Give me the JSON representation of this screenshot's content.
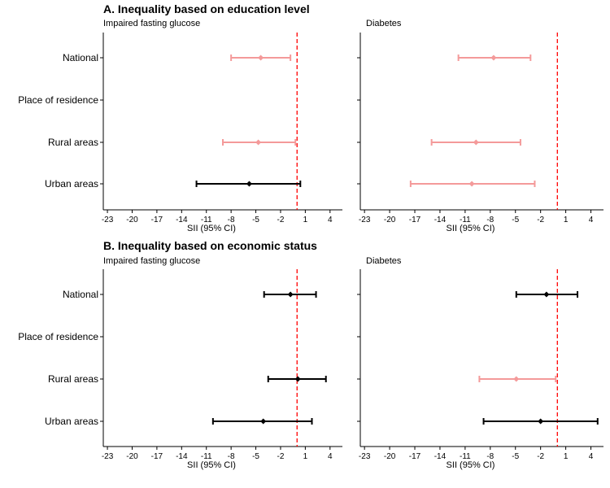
{
  "colors": {
    "significant": "#000000",
    "nonsignificant": "#f49a9a",
    "reference_line": "#ff0000",
    "axis": "#000000"
  },
  "chart_data": [
    {
      "section": "A. Inequality based on education level",
      "panels": [
        {
          "type": "forest",
          "title": "Impaired fasting glucose",
          "xlabel": "SII (95% CI)",
          "xlim": [
            -23.5,
            5.5
          ],
          "xticks": [
            -23,
            -20,
            -17,
            -14,
            -11,
            -8,
            -5,
            -2,
            1,
            4
          ],
          "ref_x": 0,
          "categories": [
            "National",
            "Place of residence",
            "Rural areas",
            "Urban areas"
          ],
          "points": [
            {
              "category": "National",
              "est": -4.4,
              "low": -8.0,
              "high": -0.8,
              "significant": false
            },
            {
              "category": "Rural areas",
              "est": -4.7,
              "low": -9.0,
              "high": -0.2,
              "significant": false
            },
            {
              "category": "Urban areas",
              "est": -5.8,
              "low": -12.2,
              "high": 0.4,
              "significant": true
            }
          ]
        },
        {
          "type": "forest",
          "title": "Diabetes",
          "xlabel": "SII (95% CI)",
          "xlim": [
            -23.5,
            5.5
          ],
          "xticks": [
            -23,
            -20,
            -17,
            -14,
            -11,
            -8,
            -5,
            -2,
            1,
            4
          ],
          "ref_x": 0,
          "categories": [
            "National",
            "Place of residence",
            "Rural areas",
            "Urban areas"
          ],
          "points": [
            {
              "category": "National",
              "est": -7.6,
              "low": -11.8,
              "high": -3.2,
              "significant": false
            },
            {
              "category": "Rural areas",
              "est": -9.7,
              "low": -15.0,
              "high": -4.4,
              "significant": false
            },
            {
              "category": "Urban areas",
              "est": -10.2,
              "low": -17.5,
              "high": -2.7,
              "significant": false
            }
          ]
        }
      ]
    },
    {
      "section": "B. Inequality based on economic status",
      "panels": [
        {
          "type": "forest",
          "title": "Impaired fasting glucose",
          "xlabel": "SII (95% CI)",
          "xlim": [
            -23.5,
            5.5
          ],
          "xticks": [
            -23,
            -20,
            -17,
            -14,
            -11,
            -8,
            -5,
            -2,
            1,
            4
          ],
          "ref_x": 0,
          "categories": [
            "National",
            "Place of residence",
            "Rural areas",
            "Urban areas"
          ],
          "points": [
            {
              "category": "National",
              "est": -0.8,
              "low": -4.0,
              "high": 2.3,
              "significant": true
            },
            {
              "category": "Rural areas",
              "est": 0.1,
              "low": -3.5,
              "high": 3.5,
              "significant": true
            },
            {
              "category": "Urban areas",
              "est": -4.1,
              "low": -10.2,
              "high": 1.8,
              "significant": true
            }
          ]
        },
        {
          "type": "forest",
          "title": "Diabetes",
          "xlabel": "SII (95% CI)",
          "xlim": [
            -23.5,
            5.5
          ],
          "xticks": [
            -23,
            -20,
            -17,
            -14,
            -11,
            -8,
            -5,
            -2,
            1,
            4
          ],
          "ref_x": 0,
          "categories": [
            "National",
            "Place of residence",
            "Rural areas",
            "Urban areas"
          ],
          "points": [
            {
              "category": "National",
              "est": -1.3,
              "low": -4.9,
              "high": 2.4,
              "significant": true
            },
            {
              "category": "Rural areas",
              "est": -4.9,
              "low": -9.3,
              "high": -0.2,
              "significant": false
            },
            {
              "category": "Urban areas",
              "est": -2.0,
              "low": -8.8,
              "high": 4.8,
              "significant": true
            }
          ]
        }
      ]
    }
  ]
}
